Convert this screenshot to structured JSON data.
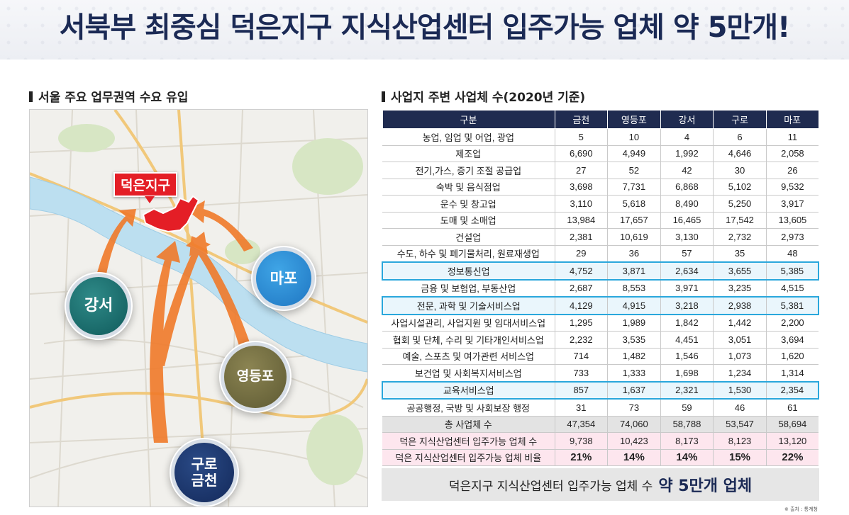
{
  "title": "서북부 최중심 덕은지구 지식산업센터 입주가능 업체 약 5만개!",
  "left_section": {
    "title": "서울 주요 업무권역 수요 유입",
    "target_label": "덕은지구",
    "districts": {
      "gangseo": "강서",
      "mapo": "마포",
      "yeongdeungpo": "영등포",
      "guro_line1": "구로",
      "guro_line2": "금천"
    },
    "colors": {
      "target": "#e41e26",
      "arrow": "#f07a2a",
      "river": "#bcdff0"
    }
  },
  "right_section": {
    "title": "사업지 주변 사업체 수(2020년 기준)",
    "columns": [
      "구분",
      "금천",
      "영등포",
      "강서",
      "구로",
      "마포"
    ],
    "rows": [
      [
        "농업, 임업 및 어업, 광업",
        "5",
        "10",
        "4",
        "6",
        "11"
      ],
      [
        "제조업",
        "6,690",
        "4,949",
        "1,992",
        "4,646",
        "2,058"
      ],
      [
        "전기,가스, 증기 조절 공급업",
        "27",
        "52",
        "42",
        "30",
        "26"
      ],
      [
        "숙박 및 음식점업",
        "3,698",
        "7,731",
        "6,868",
        "5,102",
        "9,532"
      ],
      [
        "운수 및 창고업",
        "3,110",
        "5,618",
        "8,490",
        "5,250",
        "3,917"
      ],
      [
        "도매 및 소매업",
        "13,984",
        "17,657",
        "16,465",
        "17,542",
        "13,605"
      ],
      [
        "건설업",
        "2,381",
        "10,619",
        "3,130",
        "2,732",
        "2,973"
      ],
      [
        "수도, 하수 및 폐기물처리, 원료재생업",
        "29",
        "36",
        "57",
        "35",
        "48"
      ],
      [
        "정보통신업",
        "4,752",
        "3,871",
        "2,634",
        "3,655",
        "5,385"
      ],
      [
        "금융 및 보험업, 부동산업",
        "2,687",
        "8,553",
        "3,971",
        "3,235",
        "4,515"
      ],
      [
        "전문, 과학 및 기술서비스업",
        "4,129",
        "4,915",
        "3,218",
        "2,938",
        "5,381"
      ],
      [
        "사업시설관리, 사업지원 및 임대서비스업",
        "1,295",
        "1,989",
        "1,842",
        "1,442",
        "2,200"
      ],
      [
        "협회 및 단체, 수리 및 기타개인서비스업",
        "2,232",
        "3,535",
        "4,451",
        "3,051",
        "3,694"
      ],
      [
        "예술, 스포츠 및 여가관련 서비스업",
        "714",
        "1,482",
        "1,546",
        "1,073",
        "1,620"
      ],
      [
        "보건업 및 사회복지서비스업",
        "733",
        "1,333",
        "1,698",
        "1,234",
        "1,314"
      ],
      [
        "교육서비스업",
        "857",
        "1,637",
        "2,321",
        "1,530",
        "2,354"
      ],
      [
        "공공행정, 국방 및 사회보장 행정",
        "31",
        "73",
        "59",
        "46",
        "61"
      ],
      [
        "총 사업체 수",
        "47,354",
        "74,060",
        "58,788",
        "53,547",
        "58,694"
      ],
      [
        "덕은 지식산업센터 입주가능 업체 수",
        "9,738",
        "10,423",
        "8,173",
        "8,123",
        "13,120"
      ],
      [
        "덕은 지식산업센터 입주가능 업체 비율",
        "21%",
        "14%",
        "14%",
        "15%",
        "22%"
      ]
    ],
    "highlight_rows": [
      8,
      10,
      15
    ],
    "total_row": 17,
    "pink_rows": [
      18,
      19
    ],
    "summary_text": "덕은지구 지식산업센터 입주가능 업체 수",
    "summary_emphasis": "약 5만개 업체",
    "source": "※ 출처 : 통계청"
  }
}
